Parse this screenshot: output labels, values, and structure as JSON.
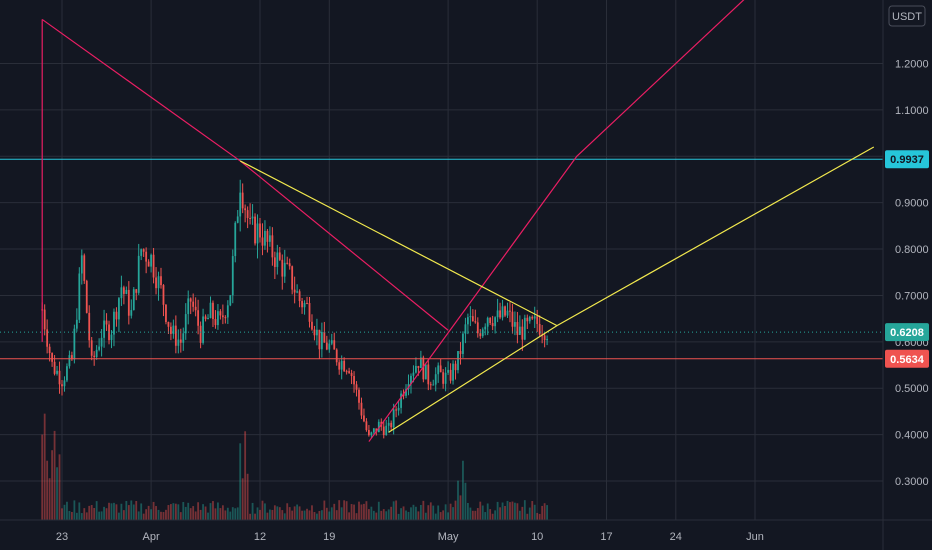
{
  "chart_data": {
    "type": "candlestick",
    "currency": "USDT",
    "x_ticks": [
      "23",
      "Apr",
      "12",
      "19",
      "May",
      "10",
      "17",
      "24",
      "Jun"
    ],
    "y_ticks": [
      "1.2000",
      "1.1000",
      "1.0000",
      "0.9000",
      "0.8000",
      "0.7000",
      "0.6000",
      "0.5000",
      "0.4000",
      "0.3000"
    ],
    "ylim": [
      0.22,
      1.32
    ],
    "grid": true,
    "price_tags": [
      {
        "label": "0.9937",
        "value": 0.9937,
        "color": "#26c6da",
        "text_color": "#131722"
      },
      {
        "label": "0.6208",
        "value": 0.6208,
        "color": "#26a69a",
        "text_color": "#ffffff"
      },
      {
        "label": "0.5634",
        "value": 0.5634,
        "color": "#ef5350",
        "text_color": "#ffffff"
      }
    ],
    "horizontal_lines": [
      {
        "value": 0.9937,
        "color": "#26c6da",
        "style": "solid"
      },
      {
        "value": 0.5634,
        "color": "#ef5350",
        "style": "solid"
      },
      {
        "value": 0.6208,
        "color": "#26a69a",
        "style": "dotted"
      }
    ],
    "trend_lines": [
      {
        "color": "#e91e63",
        "points": [
          [
            "Mar 21",
            1.295
          ],
          [
            "Apr 10",
            0.99
          ],
          [
            "May 1",
            0.625
          ]
        ]
      },
      {
        "color": "#e91e63",
        "points": [
          [
            "Mar 21",
            1.295
          ],
          [
            "Mar 21",
            0.6
          ]
        ]
      },
      {
        "color": "#e91e63",
        "points": [
          [
            "Apr 23",
            0.385
          ],
          [
            "May 14",
            1.0
          ],
          [
            "Jun 1",
            1.36
          ]
        ]
      },
      {
        "color": "#f2e94e",
        "points": [
          [
            "Apr 10",
            0.99
          ],
          [
            "May 12",
            0.635
          ]
        ]
      },
      {
        "color": "#f2e94e",
        "points": [
          [
            "Apr 25",
            0.405
          ],
          [
            "May 12",
            0.635
          ],
          [
            "Jun 13",
            1.02
          ]
        ]
      }
    ],
    "candle_colors": {
      "up": "#26a69a",
      "down": "#ef5350"
    },
    "ohlc_anchor_closes": [
      [
        "Mar 21",
        0.67
      ],
      [
        "Mar 22",
        0.55
      ],
      [
        "Mar 23",
        0.52
      ],
      [
        "Mar 24",
        0.56
      ],
      [
        "Mar 25",
        0.78
      ],
      [
        "Mar 26",
        0.55
      ],
      [
        "Mar 27",
        0.62
      ],
      [
        "Mar 28",
        0.63
      ],
      [
        "Mar 29",
        0.72
      ],
      [
        "Mar 30",
        0.66
      ],
      [
        "Mar 31",
        0.8
      ],
      [
        "Apr 1",
        0.78
      ],
      [
        "Apr 2",
        0.71
      ],
      [
        "Apr 3",
        0.62
      ],
      [
        "Apr 4",
        0.6
      ],
      [
        "Apr 5",
        0.69
      ],
      [
        "Apr 6",
        0.62
      ],
      [
        "Apr 7",
        0.66
      ],
      [
        "Apr 8",
        0.64
      ],
      [
        "Apr 9",
        0.71
      ],
      [
        "Apr 10",
        0.95
      ],
      [
        "Apr 11",
        0.84
      ],
      [
        "Apr 12",
        0.84
      ],
      [
        "Apr 13",
        0.8
      ],
      [
        "Apr 14",
        0.77
      ],
      [
        "Apr 15",
        0.74
      ],
      [
        "Apr 16",
        0.69
      ],
      [
        "Apr 17",
        0.67
      ],
      [
        "Apr 18",
        0.6
      ],
      [
        "Apr 19",
        0.59
      ],
      [
        "Apr 20",
        0.56
      ],
      [
        "Apr 21",
        0.55
      ],
      [
        "Apr 22",
        0.47
      ],
      [
        "Apr 23",
        0.39
      ],
      [
        "Apr 24",
        0.42
      ],
      [
        "Apr 25",
        0.41
      ],
      [
        "Apr 26",
        0.47
      ],
      [
        "Apr 27",
        0.53
      ],
      [
        "Apr 28",
        0.56
      ],
      [
        "Apr 29",
        0.52
      ],
      [
        "Apr 30",
        0.53
      ],
      [
        "May 1",
        0.52
      ],
      [
        "May 2",
        0.56
      ],
      [
        "May 3",
        0.65
      ],
      [
        "May 4",
        0.62
      ],
      [
        "May 5",
        0.66
      ],
      [
        "May 6",
        0.65
      ],
      [
        "May 7",
        0.66
      ],
      [
        "May 8",
        0.62
      ],
      [
        "May 9",
        0.63
      ],
      [
        "May 10",
        0.64
      ],
      [
        "May 11",
        0.625
      ]
    ],
    "volume": "shown as bars along bottom, spike near Mar 21-22, Apr 10 and May 2"
  }
}
